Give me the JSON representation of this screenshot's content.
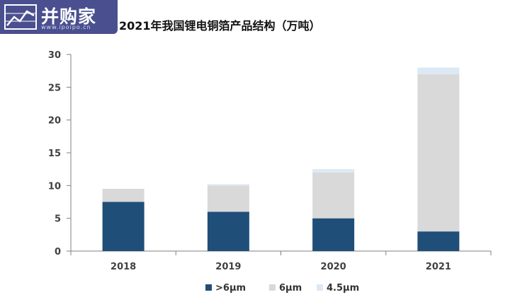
{
  "logo": {
    "text": "并购家",
    "url": "www.ipoipo.cn",
    "icon": "line-chart-logo-icon"
  },
  "chart_data": {
    "type": "bar",
    "stacked": true,
    "title": "2021年我国锂电铜箔产品结构（万吨）",
    "categories": [
      "2018",
      "2019",
      "2020",
      "2021"
    ],
    "series": [
      {
        "name": ">6μm",
        "values": [
          7.5,
          6.0,
          5.0,
          3.0
        ],
        "color": "#1f4e79"
      },
      {
        "name": "6μm",
        "values": [
          2.0,
          4.0,
          7.0,
          24.0
        ],
        "color": "#d9d9d9"
      },
      {
        "name": "4.5μm",
        "values": [
          0.0,
          0.2,
          0.5,
          1.0
        ],
        "color": "#dce8f5"
      }
    ],
    "yticks": [
      0,
      5,
      10,
      15,
      20,
      25,
      30
    ],
    "ylim": [
      0,
      30
    ],
    "xlabel": "",
    "ylabel": "",
    "grid": false,
    "legend": "bottom"
  }
}
